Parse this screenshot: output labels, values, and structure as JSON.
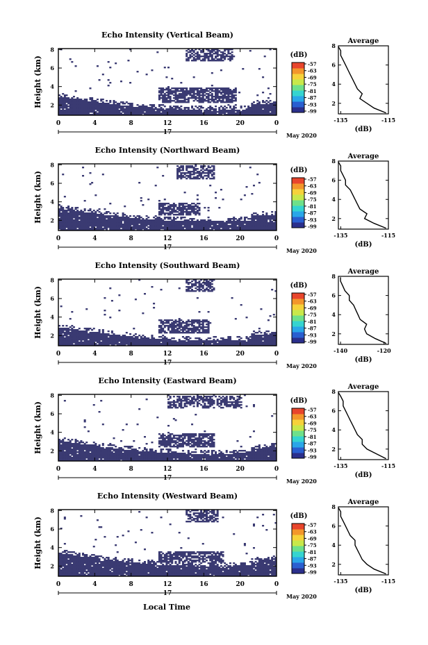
{
  "chart_data": [
    {
      "type": "heatmap",
      "title": "Echo Intensity (Vertical Beam)",
      "ylabel": "Height (km)",
      "xticks": [
        "0",
        "4",
        "8",
        "12",
        "16",
        "20",
        "0"
      ],
      "date_label": "17",
      "month_label": "May 2020",
      "yticks": [
        "2",
        "4",
        "6",
        "8"
      ],
      "colorbar_unit": "(dB)",
      "colorbar_ticks": [
        "-57",
        "-63",
        "-69",
        "-75",
        "-81",
        "-87",
        "-93",
        "-99"
      ],
      "upper_band": [
        6.8,
        8.2
      ],
      "upper_cols": [
        14,
        19
      ],
      "lower_top": 2.9,
      "mid_band": [
        2.3,
        3.9
      ],
      "mid_cols": [
        11,
        19.5
      ],
      "seed": 7,
      "avg": {
        "title": "Average",
        "xlabel": "(dB)",
        "xticks": [
          "-135",
          "-115"
        ],
        "yticks": [
          "2",
          "4",
          "6",
          "8"
        ],
        "xlim": [
          -136,
          -115
        ],
        "ylim": [
          0.9,
          8.0
        ],
        "heights": [
          1.0,
          1.5,
          2.0,
          2.5,
          3.0,
          3.5,
          4.0,
          4.5,
          5.0,
          5.5,
          6.0,
          6.5,
          7.0,
          7.5,
          7.9
        ],
        "values": [
          -116,
          -121,
          -124,
          -127,
          -126,
          -128,
          -129,
          -130,
          -131,
          -132,
          -133,
          -134,
          -135,
          -135,
          -136
        ]
      }
    },
    {
      "type": "heatmap",
      "title": "Echo Intensity (Northward Beam)",
      "ylabel": "Height (km)",
      "xticks": [
        "0",
        "4",
        "8",
        "12",
        "16",
        "20",
        "0"
      ],
      "date_label": "17",
      "month_label": "May 2020",
      "yticks": [
        "2",
        "4",
        "6",
        "8"
      ],
      "colorbar_unit": "(dB)",
      "colorbar_ticks": [
        "-57",
        "-63",
        "-69",
        "-75",
        "-81",
        "-87",
        "-93",
        "-99"
      ],
      "upper_band": [
        6.5,
        8.0
      ],
      "upper_cols": [
        13,
        17
      ],
      "lower_top": 3.3,
      "mid_band": [
        2.6,
        3.9
      ],
      "mid_cols": [
        11,
        15.5
      ],
      "seed": 23,
      "avg": {
        "title": "Average",
        "xlabel": "(dB)",
        "xticks": [
          "-135",
          "-115"
        ],
        "yticks": [
          "2",
          "4",
          "6",
          "8"
        ],
        "xlim": [
          -136,
          -115
        ],
        "ylim": [
          0.9,
          8.0
        ],
        "heights": [
          1.0,
          1.5,
          2.0,
          2.5,
          3.0,
          3.5,
          4.0,
          4.5,
          5.0,
          5.5,
          6.0,
          6.5,
          7.0,
          7.5,
          7.9
        ],
        "values": [
          -116,
          -121,
          -125,
          -124,
          -127,
          -128,
          -129,
          -130,
          -131,
          -133,
          -133,
          -134,
          -135,
          -135,
          -136
        ]
      }
    },
    {
      "type": "heatmap",
      "title": "Echo Intensity (Southward Beam)",
      "ylabel": "Height (km)",
      "xticks": [
        "0",
        "4",
        "8",
        "12",
        "16",
        "20",
        "0"
      ],
      "date_label": "17",
      "month_label": "May 2020",
      "yticks": [
        "2",
        "4",
        "6",
        "8"
      ],
      "colorbar_unit": "(dB)",
      "colorbar_ticks": [
        "-57",
        "-63",
        "-69",
        "-75",
        "-81",
        "-87",
        "-93",
        "-99"
      ],
      "upper_band": [
        6.8,
        8.2
      ],
      "upper_cols": [
        14,
        17
      ],
      "lower_top": 2.9,
      "mid_band": [
        2.2,
        3.8
      ],
      "mid_cols": [
        11,
        16.5
      ],
      "seed": 41,
      "avg": {
        "title": "Average",
        "xlabel": "(dB)",
        "xticks": [
          "-140",
          "-120"
        ],
        "yticks": [
          "2",
          "4",
          "6",
          "8"
        ],
        "xlim": [
          -141,
          -118
        ],
        "ylim": [
          0.9,
          8.0
        ],
        "heights": [
          1.0,
          1.5,
          2.0,
          2.5,
          3.0,
          3.5,
          4.0,
          4.5,
          5.0,
          5.5,
          6.0,
          6.5,
          7.0,
          7.5,
          7.9
        ],
        "values": [
          -119,
          -124,
          -128,
          -129,
          -128,
          -131,
          -132,
          -133,
          -134,
          -136,
          -136,
          -138,
          -139,
          -140,
          -140
        ]
      }
    },
    {
      "type": "heatmap",
      "title": "Echo Intensity (Eastward Beam)",
      "ylabel": "Height (km)",
      "xticks": [
        "0",
        "4",
        "8",
        "12",
        "16",
        "20",
        "0"
      ],
      "date_label": "17",
      "month_label": "May 2020",
      "yticks": [
        "2",
        "4",
        "6",
        "8"
      ],
      "colorbar_unit": "(dB)",
      "colorbar_ticks": [
        "-57",
        "-63",
        "-69",
        "-75",
        "-81",
        "-87",
        "-93",
        "-99"
      ],
      "upper_band": [
        6.6,
        8.0
      ],
      "upper_cols": [
        12,
        20
      ],
      "lower_top": 3.1,
      "mid_band": [
        2.4,
        3.9
      ],
      "mid_cols": [
        11,
        17
      ],
      "seed": 59,
      "avg": {
        "title": "Average",
        "xlabel": "(dB)",
        "xticks": [
          "-135",
          "-115"
        ],
        "yticks": [
          "2",
          "4",
          "6",
          "8"
        ],
        "xlim": [
          -136,
          -115
        ],
        "ylim": [
          0.9,
          8.0
        ],
        "heights": [
          1.0,
          1.5,
          2.0,
          2.5,
          3.0,
          3.5,
          4.0,
          4.5,
          5.0,
          5.5,
          6.0,
          6.5,
          7.0,
          7.5,
          7.9
        ],
        "values": [
          -116,
          -120,
          -124,
          -126,
          -126,
          -128,
          -129,
          -130,
          -131,
          -132,
          -133,
          -134,
          -134,
          -135,
          -136
        ]
      }
    },
    {
      "type": "heatmap",
      "title": "Echo Intensity (Westward Beam)",
      "ylabel": "Height (km)",
      "xticks": [
        "0",
        "4",
        "8",
        "12",
        "16",
        "20",
        "0"
      ],
      "date_label": "17",
      "month_label": "May 2020",
      "yticks": [
        "2",
        "4",
        "6",
        "8"
      ],
      "colorbar_unit": "(dB)",
      "colorbar_ticks": [
        "-57",
        "-63",
        "-69",
        "-75",
        "-81",
        "-87",
        "-93",
        "-99"
      ],
      "upper_band": [
        6.7,
        8.1
      ],
      "upper_cols": [
        14,
        17.5
      ],
      "lower_top": 3.4,
      "mid_band": [
        2.4,
        3.6
      ],
      "mid_cols": [
        11,
        18
      ],
      "seed": 83,
      "avg": {
        "title": "Average",
        "xlabel": "(dB)",
        "xticks": [
          "-135",
          "-115"
        ],
        "yticks": [
          "2",
          "4",
          "6",
          "8"
        ],
        "xlim": [
          -136,
          -115
        ],
        "ylim": [
          0.9,
          8.0
        ],
        "heights": [
          1.0,
          1.5,
          2.0,
          2.5,
          3.0,
          3.5,
          4.0,
          4.5,
          5.0,
          5.5,
          6.0,
          6.5,
          7.0,
          7.5,
          7.9
        ],
        "values": [
          -116,
          -121,
          -124,
          -126,
          -127,
          -128,
          -129,
          -129,
          -131,
          -132,
          -133,
          -134,
          -135,
          -135,
          -136
        ]
      }
    }
  ],
  "xlabel": "Local Time",
  "colors": {
    "fill": "#3a3a72",
    "colormap": [
      "#2b2f8c",
      "#2a5fd0",
      "#2aa6e8",
      "#35d4d0",
      "#6ee08a",
      "#c8e84a",
      "#f6d23a",
      "#f3962b",
      "#e8452c"
    ]
  }
}
